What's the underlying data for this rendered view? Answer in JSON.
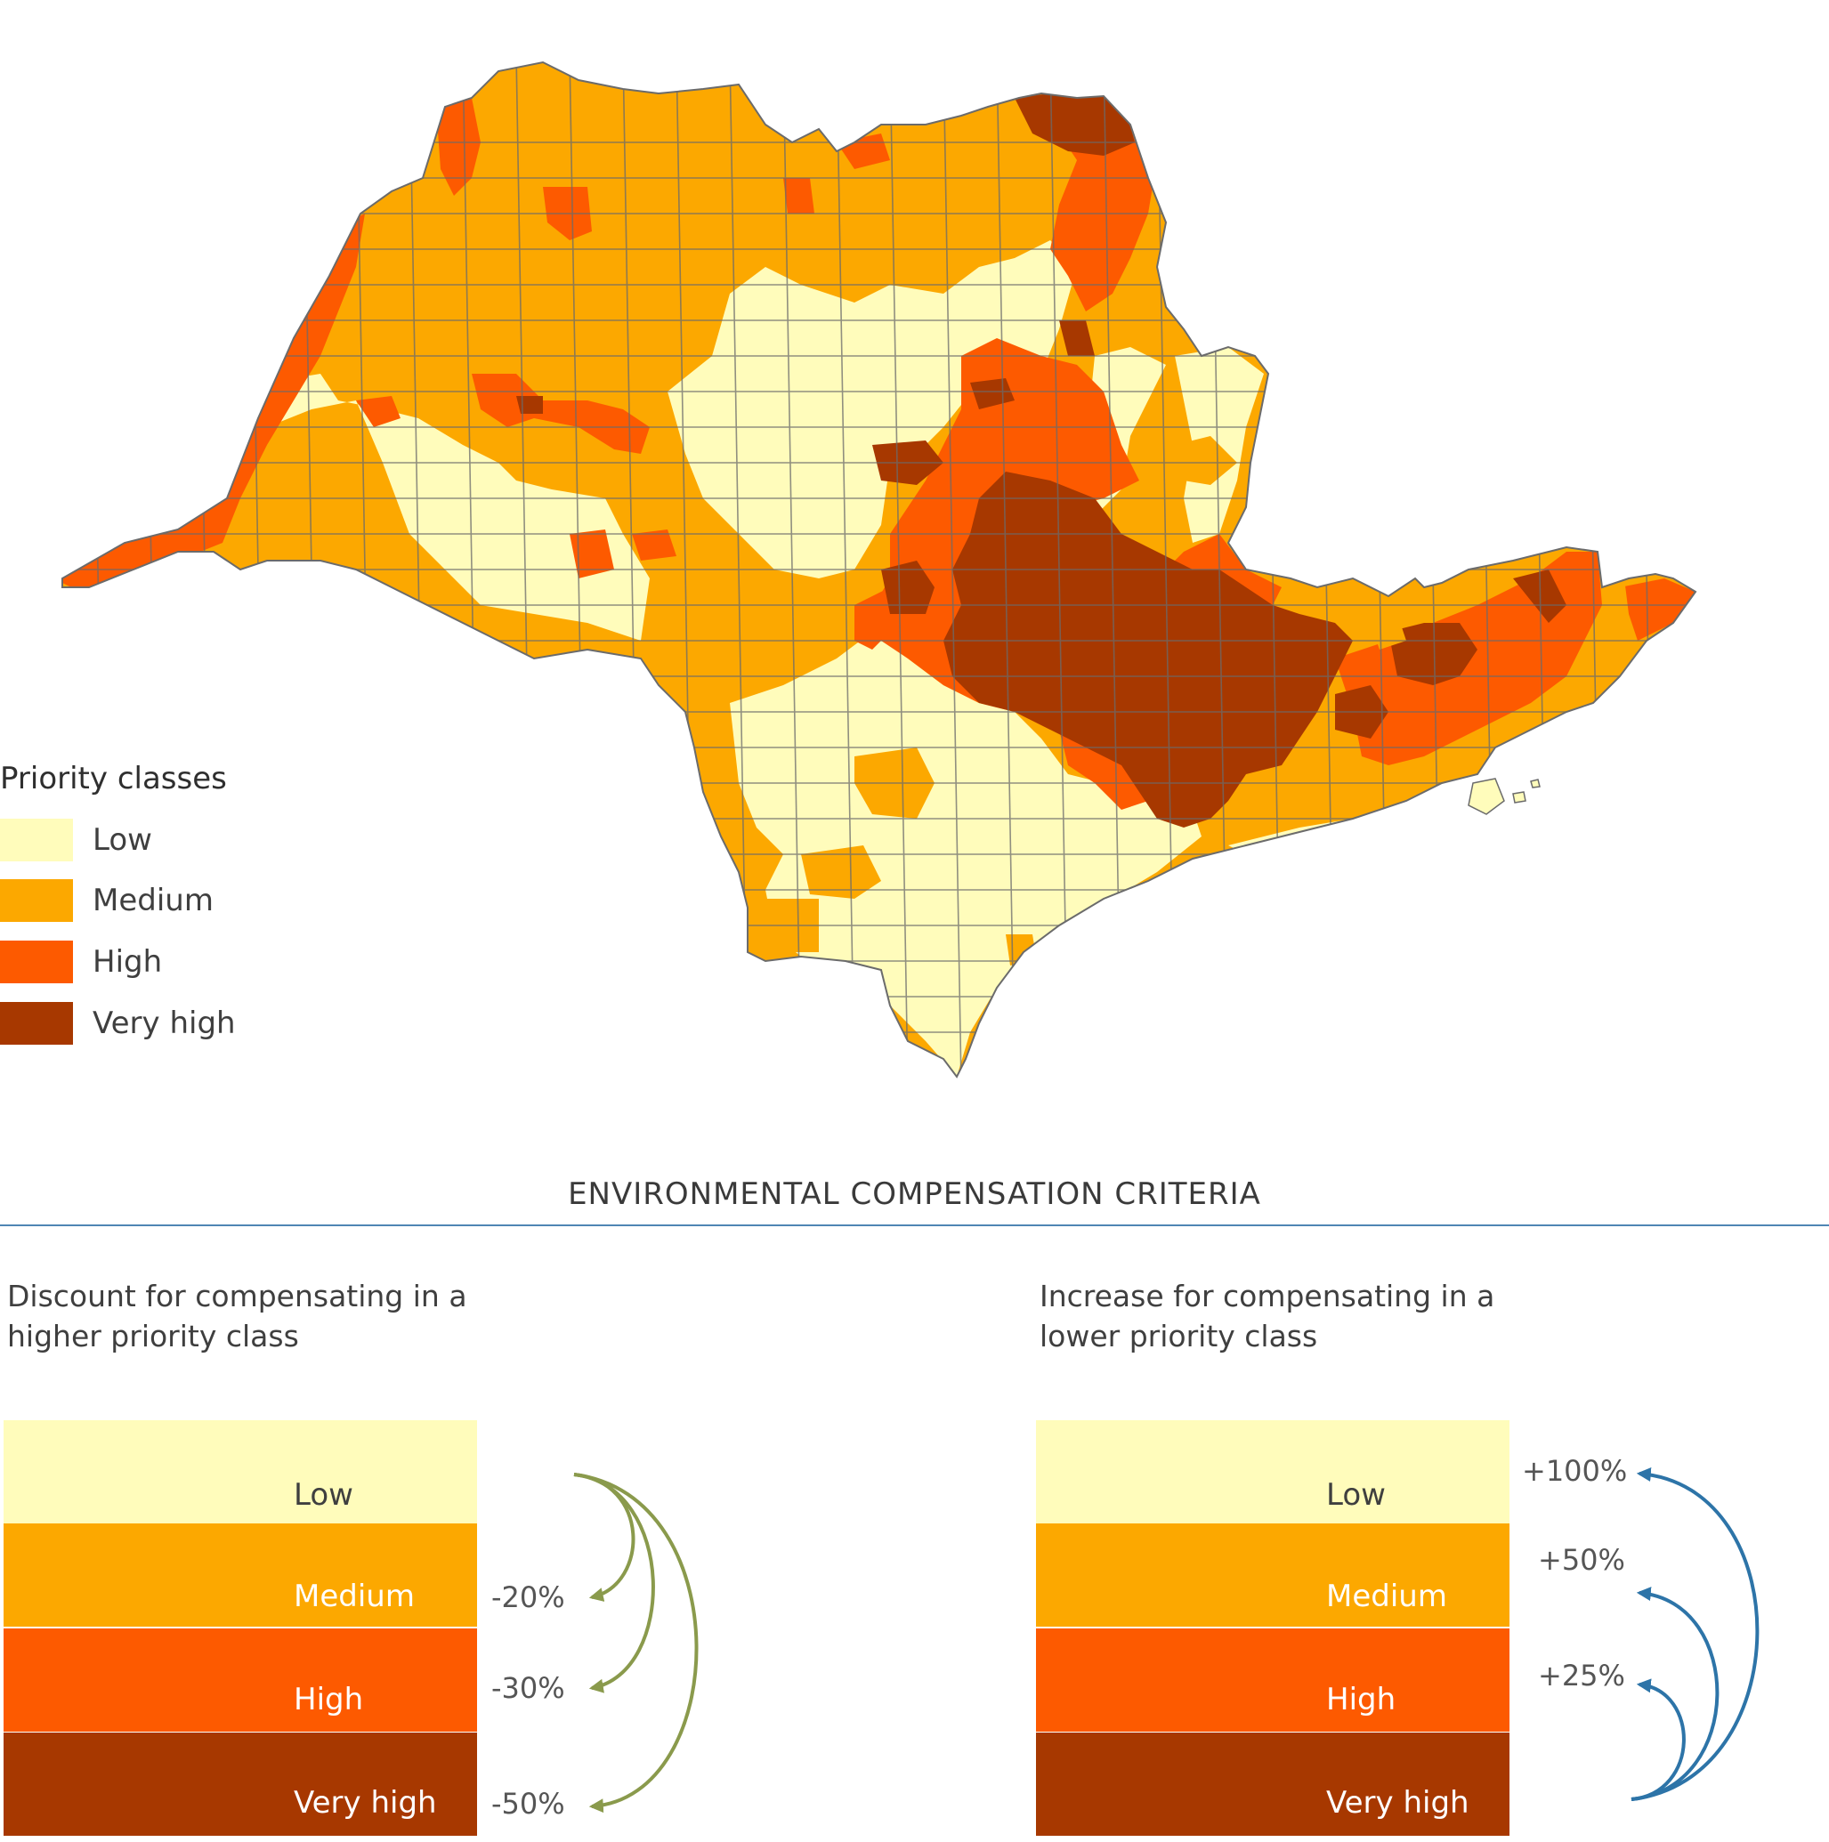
{
  "colors": {
    "low": "#fffcbb",
    "medium": "#fca800",
    "high": "#fd5a00",
    "very_high": "#a73800",
    "boundary": "#6b6b6b",
    "discount_arrow": "#8a9a4c",
    "increase_arrow": "#2d74a8",
    "rule": "#4f86b4"
  },
  "map": {
    "legend": {
      "title": "Priority classes",
      "items": [
        {
          "label": "Low",
          "class": "low"
        },
        {
          "label": "Medium",
          "class": "medium"
        },
        {
          "label": "High",
          "class": "high"
        },
        {
          "label": "Very high",
          "class": "very_high"
        }
      ]
    }
  },
  "criteria": {
    "title": "ENVIRONMENTAL COMPENSATION CRITERIA",
    "discount": {
      "heading": "Discount for compensating in a higher priority class",
      "classes": [
        "Low",
        "Medium",
        "High",
        "Very high"
      ],
      "percentages": [
        "-20%",
        "-30%",
        "-50%"
      ]
    },
    "increase": {
      "heading": "Increase for compensating in a lower priority class",
      "classes": [
        "Low",
        "Medium",
        "High",
        "Very high"
      ],
      "percentages": [
        "+100%",
        "+50%",
        "+25%"
      ]
    }
  }
}
